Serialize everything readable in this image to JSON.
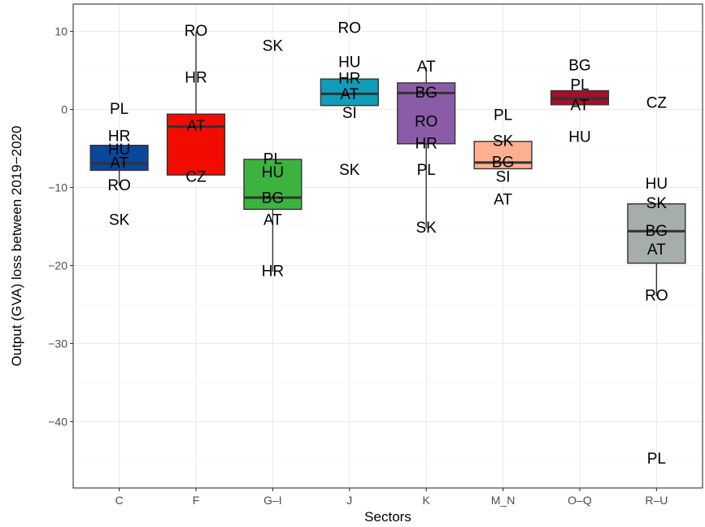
{
  "chart_data": {
    "type": "boxplot",
    "title": "",
    "xlabel": "Sectors",
    "ylabel": "Output (GVA) loss between 2019−2020",
    "ylim": [
      -48.5,
      13.5
    ],
    "yticks": [
      10,
      0,
      -10,
      -20,
      -30,
      -40
    ],
    "ytick_labels": [
      "10",
      "0",
      "−10",
      "−20",
      "−30",
      "−40"
    ],
    "grid": true,
    "categories": [
      "C",
      "F",
      "G–I",
      "J",
      "K",
      "M_N",
      "O–Q",
      "R–U"
    ],
    "boxes": [
      {
        "category": "C",
        "color": "#08479c",
        "q1": -7.8,
        "median": -6.9,
        "q3": -4.6,
        "whisker_low": -9.8,
        "whisker_high": -4.6
      },
      {
        "category": "F",
        "color": "#f20c00",
        "q1": -8.4,
        "median": -2.2,
        "q3": -0.6,
        "whisker_low": -8.4,
        "whisker_high": 10.0
      },
      {
        "category": "G–I",
        "color": "#3db33f",
        "q1": -12.8,
        "median": -11.3,
        "q3": -6.4,
        "whisker_low": -20.8,
        "whisker_high": -6.4
      },
      {
        "category": "J",
        "color": "#0e9eb9",
        "q1": 0.5,
        "median": 2.0,
        "q3": 3.9,
        "whisker_low": 0.5,
        "whisker_high": 3.9
      },
      {
        "category": "K",
        "color": "#8a5ca7",
        "q1": -4.4,
        "median": 2.1,
        "q3": 3.4,
        "whisker_low": -15.2,
        "whisker_high": 5.4
      },
      {
        "category": "M_N",
        "color": "#fdb08f",
        "q1": -7.6,
        "median": -6.8,
        "q3": -4.1,
        "whisker_low": -7.6,
        "whisker_high": -4.1
      },
      {
        "category": "O–Q",
        "color": "#a50f2c",
        "q1": 0.6,
        "median": 1.4,
        "q3": 2.4,
        "whisker_low": 0.6,
        "whisker_high": 2.4
      },
      {
        "category": "R–U",
        "color": "#a6adad",
        "q1": -19.7,
        "median": -15.6,
        "q3": -12.1,
        "whisker_low": -23.9,
        "whisker_high": -12.1
      }
    ],
    "points": [
      {
        "category": "C",
        "label": "PL",
        "value": 0.0
      },
      {
        "category": "C",
        "label": "HR",
        "value": -3.5
      },
      {
        "category": "C",
        "label": "HU",
        "value": -5.2
      },
      {
        "category": "C",
        "label": "AT",
        "value": -6.9
      },
      {
        "category": "C",
        "label": "RO",
        "value": -9.8
      },
      {
        "category": "C",
        "label": "SK",
        "value": -14.2
      },
      {
        "category": "F",
        "label": "RO",
        "value": 10.0
      },
      {
        "category": "F",
        "label": "HR",
        "value": 4.0
      },
      {
        "category": "F",
        "label": "AT",
        "value": -2.2
      },
      {
        "category": "F",
        "label": "CZ",
        "value": -8.7
      },
      {
        "category": "G–I",
        "label": "SK",
        "value": 8.1
      },
      {
        "category": "G–I",
        "label": "PL",
        "value": -6.4
      },
      {
        "category": "G–I",
        "label": "HU",
        "value": -8.1
      },
      {
        "category": "G–I",
        "label": "BG",
        "value": -11.4
      },
      {
        "category": "G–I",
        "label": "AT",
        "value": -14.2
      },
      {
        "category": "G–I",
        "label": "HR",
        "value": -20.8
      },
      {
        "category": "J",
        "label": "RO",
        "value": 10.4
      },
      {
        "category": "J",
        "label": "HU",
        "value": 6.0
      },
      {
        "category": "J",
        "label": "HR",
        "value": 3.9
      },
      {
        "category": "J",
        "label": "AT",
        "value": 1.9
      },
      {
        "category": "J",
        "label": "SI",
        "value": -0.5
      },
      {
        "category": "J",
        "label": "SK",
        "value": -7.8
      },
      {
        "category": "K",
        "label": "AT",
        "value": 5.4
      },
      {
        "category": "K",
        "label": "BG",
        "value": 2.1
      },
      {
        "category": "K",
        "label": "RO",
        "value": -1.6
      },
      {
        "category": "K",
        "label": "HR",
        "value": -4.4
      },
      {
        "category": "K",
        "label": "PL",
        "value": -7.8
      },
      {
        "category": "K",
        "label": "SK",
        "value": -15.2
      },
      {
        "category": "M_N",
        "label": "PL",
        "value": -0.8
      },
      {
        "category": "M_N",
        "label": "SK",
        "value": -4.1
      },
      {
        "category": "M_N",
        "label": "BG",
        "value": -6.8
      },
      {
        "category": "M_N",
        "label": "SI",
        "value": -8.7
      },
      {
        "category": "M_N",
        "label": "AT",
        "value": -11.6
      },
      {
        "category": "O–Q",
        "label": "BG",
        "value": 5.6
      },
      {
        "category": "O–Q",
        "label": "PL",
        "value": 3.1
      },
      {
        "category": "O–Q",
        "label": "AT",
        "value": 0.5
      },
      {
        "category": "O–Q",
        "label": "HU",
        "value": -3.6
      },
      {
        "category": "R–U",
        "label": "CZ",
        "value": 0.8
      },
      {
        "category": "R–U",
        "label": "HU",
        "value": -9.6
      },
      {
        "category": "R–U",
        "label": "SK",
        "value": -12.1
      },
      {
        "category": "R–U",
        "label": "BG",
        "value": -15.6
      },
      {
        "category": "R–U",
        "label": "AT",
        "value": -18.0
      },
      {
        "category": "R–U",
        "label": "RO",
        "value": -23.9
      },
      {
        "category": "R–U",
        "label": "PL",
        "value": -44.8
      }
    ]
  }
}
